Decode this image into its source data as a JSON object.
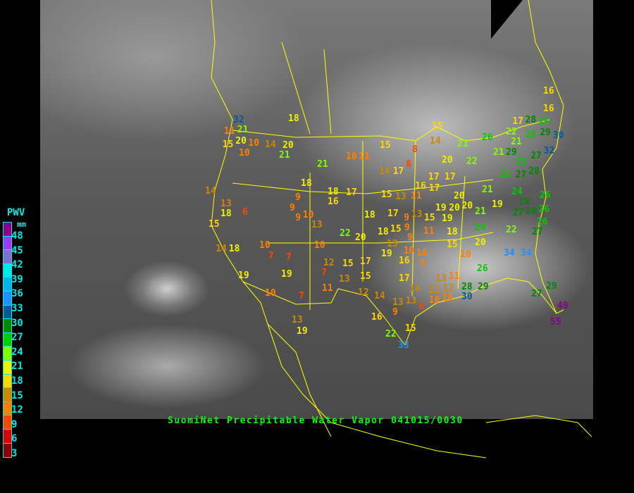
{
  "title": "SuomiNet Precipitable Water Vapor 041015/0030",
  "legend": {
    "title": "PWV",
    "unit": "mm",
    "labels": [
      "48",
      "45",
      "42",
      "39",
      "36",
      "33",
      "30",
      "27",
      "24",
      "21",
      "18",
      "15",
      "12",
      "9",
      "6",
      "3"
    ],
    "colors": [
      "#8b008b",
      "#9a3cf0",
      "#8070d0",
      "#00e8e8",
      "#00b4e6",
      "#1e90ff",
      "#005a9a",
      "#008800",
      "#00cc00",
      "#80ff00",
      "#f0f000",
      "#ffd700",
      "#cc8800",
      "#ff8000",
      "#ff4500",
      "#dd0000",
      "#8b0000"
    ]
  },
  "stations": [
    32,
    21,
    11,
    20,
    15,
    10,
    10,
    14,
    18,
    20,
    21,
    21,
    10,
    11,
    18,
    17,
    18,
    16,
    9,
    9,
    14,
    13,
    18,
    6,
    15,
    14,
    18,
    19,
    10,
    7,
    7,
    19,
    10,
    7,
    13,
    19,
    10,
    9,
    13,
    22,
    20,
    10,
    12,
    7,
    13,
    11,
    15,
    17,
    15,
    12,
    14,
    16,
    22,
    15,
    33,
    9,
    15,
    14,
    8,
    15,
    8,
    14,
    17,
    17,
    17,
    16,
    17,
    20,
    21,
    22,
    26,
    22,
    21,
    26,
    29,
    30,
    28,
    26,
    17,
    21,
    29,
    32,
    27,
    25,
    25,
    27,
    28,
    24,
    29,
    28,
    27,
    21,
    20,
    20,
    20,
    21,
    19,
    19,
    19,
    26,
    26,
    26,
    24,
    22,
    27,
    15,
    13,
    11,
    18,
    17,
    13,
    15,
    9,
    9,
    9,
    11,
    18,
    16,
    16,
    18,
    15,
    13,
    19,
    16,
    10,
    10,
    9,
    17,
    14,
    13,
    13,
    8,
    12,
    12,
    10,
    10,
    11,
    13,
    15,
    10,
    20,
    26,
    28,
    30,
    29,
    34,
    34,
    29,
    27,
    49,
    55
  ]
}
